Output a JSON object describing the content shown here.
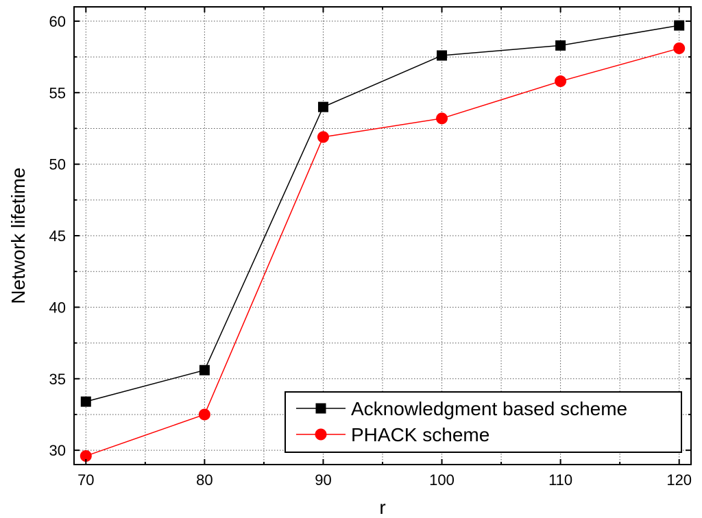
{
  "chart_data": {
    "type": "line",
    "title": "",
    "xlabel": "r",
    "ylabel": "Network lifetime",
    "x": [
      70,
      80,
      90,
      100,
      110,
      120
    ],
    "xlim": [
      69,
      121
    ],
    "ylim": [
      29,
      61
    ],
    "x_ticks": [
      "70",
      "80",
      "90",
      "100",
      "110",
      "120"
    ],
    "y_ticks": [
      "30",
      "35",
      "40",
      "45",
      "50",
      "55",
      "60"
    ],
    "x_tick_values": [
      70,
      80,
      90,
      100,
      110,
      120
    ],
    "y_tick_values": [
      30,
      35,
      40,
      45,
      50,
      55,
      60
    ],
    "grid": true,
    "legend_position": "bottom-right",
    "series": [
      {
        "name": "Acknowledgment based scheme",
        "color": "#000000",
        "marker": "square",
        "values": [
          33.4,
          35.6,
          54.0,
          57.6,
          58.3,
          59.7
        ]
      },
      {
        "name": "PHACK scheme",
        "color": "#ff0000",
        "marker": "circle",
        "values": [
          29.6,
          32.5,
          51.9,
          53.2,
          55.8,
          58.1
        ]
      }
    ]
  }
}
